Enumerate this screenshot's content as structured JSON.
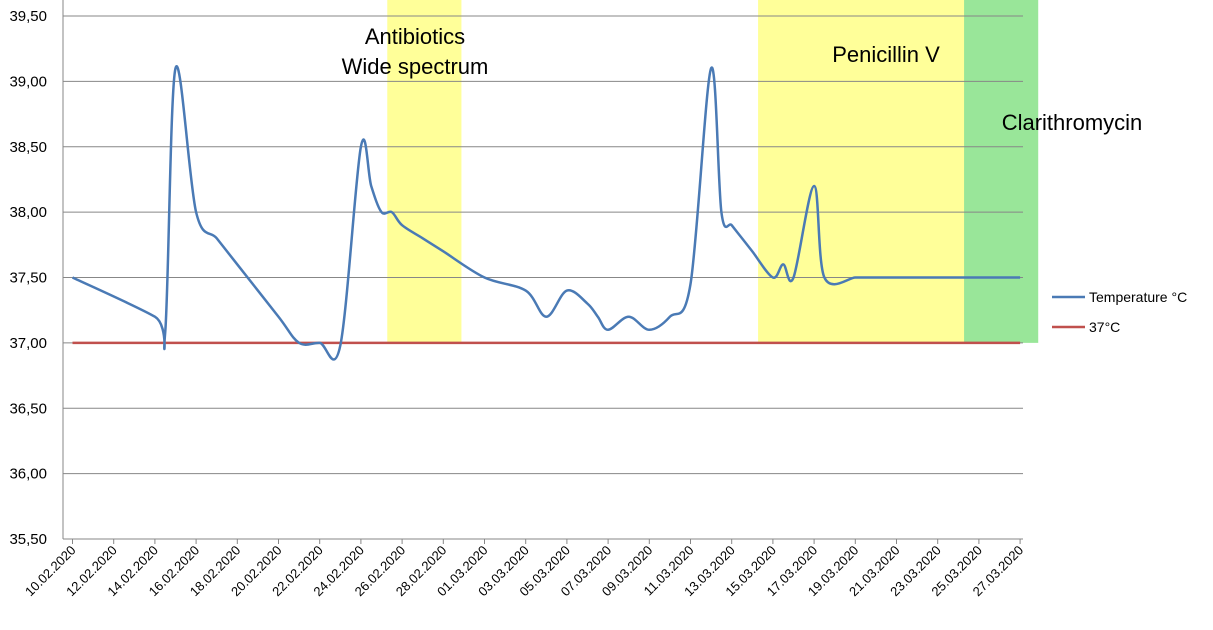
{
  "chart_data": {
    "type": "line",
    "title": "",
    "xlabel": "",
    "ylabel": "",
    "ylim": [
      35.5,
      39.5
    ],
    "y_ticks": [
      "35,50",
      "36,00",
      "36,50",
      "37,00",
      "37,50",
      "38,00",
      "38,50",
      "39,00",
      "39,50"
    ],
    "x_ticks": [
      "10.02.2020",
      "12.02.2020",
      "14.02.2020",
      "16.02.2020",
      "18.02.2020",
      "20.02.2020",
      "22.02.2020",
      "24.02.2020",
      "26.02.2020",
      "28.02.2020",
      "01.03.2020",
      "03.03.2020",
      "05.03.2020",
      "07.03.2020",
      "09.03.2020",
      "11.03.2020",
      "13.03.2020",
      "15.03.2020",
      "17.03.2020",
      "19.03.2020",
      "21.03.2020",
      "23.03.2020",
      "25.03.2020",
      "27.03.2020"
    ],
    "grid": true,
    "legend_position": "right",
    "series": [
      {
        "name": "Temperature °C",
        "color": "#4a7ab5",
        "x": [
          "10.02.2020",
          "14.02.2020",
          "14.02.2020",
          "15.02.2020",
          "16.02.2020",
          "17.02.2020",
          "18.02.2020",
          "20.02.2020",
          "21.02.2020",
          "22.02.2020",
          "23.02.2020",
          "24.02.2020",
          "24.02.2020",
          "25.02.2020",
          "25.02.2020",
          "26.02.2020",
          "27.02.2020",
          "28.02.2020",
          "01.03.2020",
          "03.03.2020",
          "04.03.2020",
          "05.03.2020",
          "06.03.2020",
          "06.03.2020",
          "07.03.2020",
          "08.03.2020",
          "09.03.2020",
          "10.03.2020",
          "11.03.2020",
          "12.03.2020",
          "12.03.2020",
          "13.03.2020",
          "13.03.2020",
          "14.03.2020",
          "15.03.2020",
          "15.03.2020",
          "16.03.2020",
          "17.03.2020",
          "17.03.2020",
          "19.03.2020",
          "19.03.2020",
          "20.03.2020",
          "21.03.2020",
          "21.03.2020",
          "22.03.2020",
          "23.03.2020",
          "24.03.2020",
          "25.03.2020",
          "26.03.2020",
          "27.03.2020"
        ],
        "y": [
          37.5,
          37.2,
          37.08,
          39.1,
          38.0,
          37.8,
          37.6,
          37.2,
          37.0,
          37.0,
          36.98,
          38.5,
          38.2,
          38.0,
          38.0,
          37.9,
          37.8,
          37.7,
          37.5,
          37.4,
          37.2,
          37.4,
          37.3,
          37.2,
          37.1,
          37.2,
          37.1,
          37.2,
          37.45,
          39.1,
          38.0,
          37.9,
          37.8,
          37.7,
          37.5,
          37.6,
          37.5,
          38.2,
          37.5,
          37.5,
          37.5,
          37.5,
          37.5,
          37.5,
          37.5,
          37.5,
          37.5,
          37.5,
          37.5,
          37.5
        ]
      },
      {
        "name": "37°C",
        "color": "#c0504d",
        "x": [
          "10.02.2020",
          "27.03.2020"
        ],
        "y": [
          37.0,
          37.0
        ]
      }
    ],
    "bands": [
      {
        "label_lines": [
          "Antibiotics",
          "Wide spectrum"
        ],
        "from": "26.02.2020",
        "to": "28.02.2020",
        "color": "#ffff99"
      },
      {
        "label_lines": [
          "Penicillin V"
        ],
        "from": "15.03.2020",
        "to": "25.03.2020",
        "color": "#ffff99"
      },
      {
        "label_lines": [
          "Clarithromycin"
        ],
        "from": "25.03.2020",
        "to": "27.03.2020",
        "color": "#99e699"
      }
    ]
  }
}
